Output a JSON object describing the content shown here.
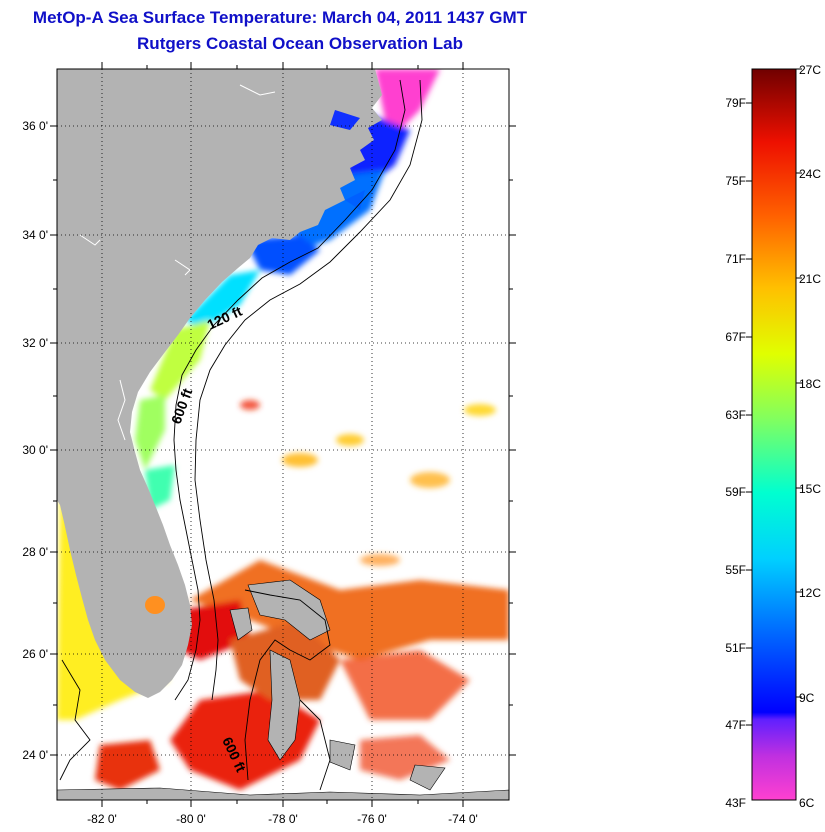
{
  "header": {
    "title": "MetOp-A Sea Surface Temperature:  March 04, 2011 1437 GMT",
    "subtitle": "Rutgers Coastal Ocean Observation Lab"
  },
  "map": {
    "lat_labels": [
      "36 0'",
      "34 0'",
      "32 0'",
      "30 0'",
      "28 0'",
      "26 0'",
      "24 0'"
    ],
    "lon_labels": [
      "-82 0'",
      "-80 0'",
      "-78 0'",
      "-76 0'",
      "-74 0'"
    ],
    "depth_labels": [
      "120 ft",
      "600 ft",
      "600 ft"
    ],
    "land_color": "#b3b3b3",
    "ocean_color": "#ffffff"
  },
  "colorbar": {
    "fahrenheit_labels": [
      "79F",
      "75F",
      "71F",
      "67F",
      "63F",
      "59F",
      "55F",
      "51F",
      "47F",
      "43F"
    ],
    "celsius_labels": [
      "27C",
      "24C",
      "21C",
      "18C",
      "15C",
      "12C",
      "9C",
      "6C"
    ],
    "colors": [
      "#ff40d0",
      "#8020ff",
      "#0000ff",
      "#00a0ff",
      "#00ffff",
      "#80ff80",
      "#ffff00",
      "#ffa000",
      "#ff4000",
      "#e00000",
      "#800000"
    ]
  }
}
